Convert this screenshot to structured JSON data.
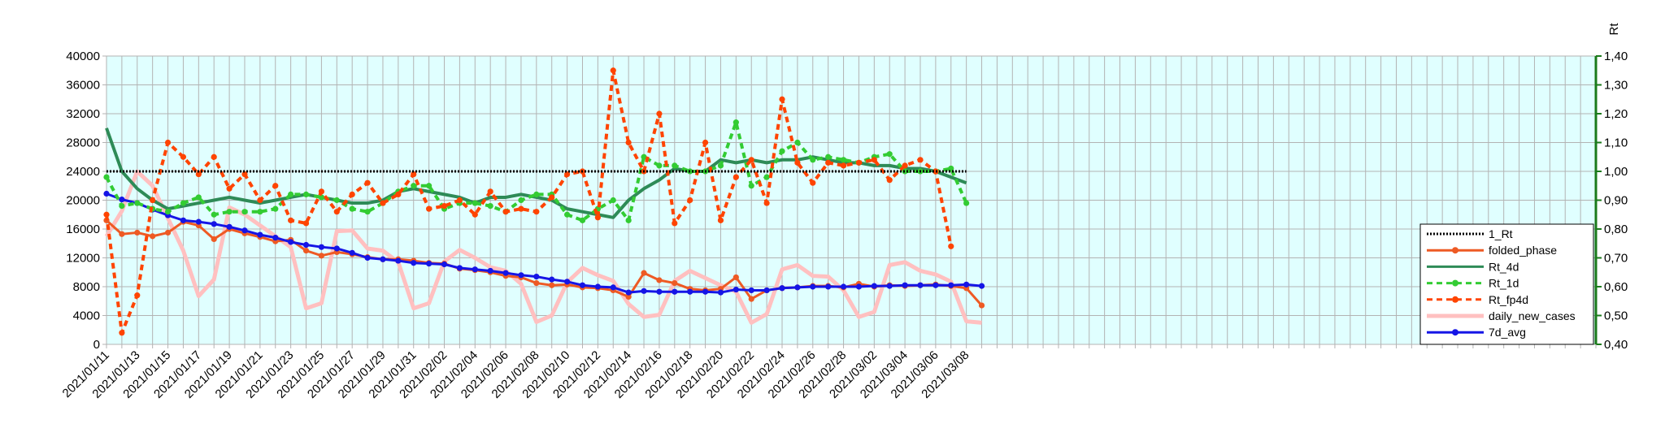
{
  "chart_data": {
    "type": "line",
    "y2label": "Rt",
    "ylim": [
      0,
      40000
    ],
    "yticks": [
      0,
      4000,
      8000,
      12000,
      16000,
      20000,
      24000,
      28000,
      32000,
      36000,
      40000
    ],
    "y2lim": [
      0.4,
      1.4
    ],
    "y2ticks": [
      "0,40",
      "0,50",
      "0,60",
      "0,70",
      "0,80",
      "0,90",
      "1,00",
      "1,10",
      "1,20",
      "1,30",
      "1,40"
    ],
    "grid": true,
    "legend_position": "right",
    "x_start": "2021/01/11",
    "x_end": "2021/04/18",
    "x_tick_labels": [
      "2021/01/11",
      "2021/01/13",
      "2021/01/15",
      "2021/01/17",
      "2021/01/19",
      "2021/01/21",
      "2021/01/23",
      "2021/01/25",
      "2021/01/27",
      "2021/01/29",
      "2021/01/31",
      "2021/02/02",
      "2021/02/04",
      "2021/02/06",
      "2021/02/08",
      "2021/02/10",
      "2021/02/12",
      "2021/02/14",
      "2021/02/16",
      "2021/02/18",
      "2021/02/20",
      "2021/02/22",
      "2021/02/24",
      "2021/02/26",
      "2021/02/28",
      "2021/03/02",
      "2021/03/04",
      "2021/03/06",
      "2021/03/08"
    ],
    "series": [
      {
        "name": "1_Rt",
        "axis": "right",
        "color": "#000000",
        "style": "dotted",
        "marker": "none",
        "values": [
          1.0,
          1.0,
          1.0,
          1.0,
          1.0,
          1.0,
          1.0,
          1.0,
          1.0,
          1.0,
          1.0,
          1.0,
          1.0,
          1.0,
          1.0,
          1.0,
          1.0,
          1.0,
          1.0,
          1.0,
          1.0,
          1.0,
          1.0,
          1.0,
          1.0,
          1.0,
          1.0,
          1.0,
          1.0,
          1.0,
          1.0,
          1.0,
          1.0,
          1.0,
          1.0,
          1.0,
          1.0,
          1.0,
          1.0,
          1.0,
          1.0,
          1.0,
          1.0,
          1.0,
          1.0,
          1.0,
          1.0,
          1.0,
          1.0,
          1.0,
          1.0,
          1.0,
          1.0,
          1.0,
          1.0,
          1.0,
          1.0
        ]
      },
      {
        "name": "folded_phase",
        "axis": "left",
        "color": "#ee5a24",
        "style": "solid",
        "marker": "circle",
        "values": [
          17200,
          15300,
          15500,
          15000,
          15500,
          17000,
          16500,
          14600,
          16000,
          15400,
          14900,
          14300,
          14500,
          13000,
          12300,
          12800,
          12500,
          12100,
          11800,
          11800,
          11600,
          11300,
          11200,
          10500,
          10300,
          10000,
          9500,
          9300,
          8500,
          8200,
          8300,
          7900,
          7800,
          7500,
          6600,
          9900,
          8900,
          8500,
          7700,
          7500,
          7700,
          9300,
          6300,
          7500,
          7800,
          7900,
          8100,
          8100,
          7900,
          8400,
          8000,
          8200,
          8100,
          8200,
          8300,
          8100,
          7800,
          5400
        ]
      },
      {
        "name": "Rt_4d",
        "axis": "right",
        "color": "#2e8b57",
        "style": "solid",
        "marker": "none",
        "values": [
          1.15,
          1.0,
          0.94,
          0.9,
          0.87,
          0.88,
          0.89,
          0.9,
          0.91,
          0.9,
          0.89,
          0.9,
          0.91,
          0.92,
          0.91,
          0.9,
          0.89,
          0.89,
          0.9,
          0.93,
          0.94,
          0.93,
          0.92,
          0.91,
          0.89,
          0.91,
          0.91,
          0.92,
          0.91,
          0.9,
          0.87,
          0.86,
          0.85,
          0.84,
          0.9,
          0.94,
          0.97,
          1.01,
          1.0,
          1.0,
          1.04,
          1.03,
          1.04,
          1.03,
          1.04,
          1.04,
          1.05,
          1.04,
          1.03,
          1.03,
          1.02,
          1.02,
          1.01,
          1.01,
          1.0,
          0.98,
          0.96
        ]
      },
      {
        "name": "Rt_1d",
        "axis": "right",
        "color": "#33cc33",
        "style": "dashed",
        "marker": "circle",
        "values": [
          0.98,
          0.88,
          0.89,
          0.87,
          0.86,
          0.89,
          0.91,
          0.85,
          0.86,
          0.86,
          0.86,
          0.87,
          0.92,
          0.92,
          0.91,
          0.9,
          0.87,
          0.86,
          0.89,
          0.93,
          0.95,
          0.95,
          0.87,
          0.89,
          0.89,
          0.88,
          0.86,
          0.9,
          0.92,
          0.92,
          0.85,
          0.83,
          0.87,
          0.9,
          0.83,
          1.05,
          1.02,
          1.02,
          1.0,
          1.0,
          1.02,
          1.17,
          0.95,
          0.98,
          1.07,
          1.1,
          1.04,
          1.05,
          1.04,
          1.03,
          1.05,
          1.06,
          1.0,
          1.0,
          1.0,
          1.01,
          0.89
        ]
      },
      {
        "name": "Rt_fp4d",
        "axis": "right",
        "color": "#ff4400",
        "style": "dashed",
        "marker": "circle",
        "values": [
          0.85,
          0.44,
          0.57,
          0.9,
          1.1,
          1.05,
          0.99,
          1.05,
          0.94,
          0.99,
          0.9,
          0.95,
          0.83,
          0.82,
          0.93,
          0.86,
          0.92,
          0.96,
          0.89,
          0.92,
          0.99,
          0.87,
          0.88,
          0.9,
          0.85,
          0.93,
          0.86,
          0.87,
          0.86,
          0.91,
          0.99,
          1.0,
          0.84,
          1.35,
          1.1,
          1.0,
          1.2,
          0.82,
          0.9,
          1.1,
          0.83,
          0.98,
          1.04,
          0.89,
          1.25,
          1.03,
          0.96,
          1.03,
          1.02,
          1.03,
          1.04,
          0.97,
          1.02,
          1.04,
          1.0,
          0.74
        ]
      },
      {
        "name": "daily_new_cases",
        "axis": "left",
        "color": "#ffc0c0",
        "style": "solid",
        "marker": "none",
        "values": [
          15000,
          18500,
          24000,
          22000,
          17500,
          13000,
          6700,
          9000,
          19000,
          18000,
          16500,
          15000,
          13500,
          5000,
          5700,
          15700,
          15800,
          13300,
          13000,
          11400,
          5000,
          5700,
          11500,
          13100,
          12000,
          10700,
          10200,
          8400,
          3100,
          4000,
          8600,
          10600,
          9600,
          8800,
          5600,
          3800,
          4100,
          8800,
          10200,
          9200,
          8200,
          7300,
          3000,
          4200,
          10400,
          11000,
          9500,
          9400,
          7500,
          3800,
          4500,
          11000,
          11400,
          10200,
          9700,
          8700,
          3200,
          3000
        ]
      },
      {
        "name": "7d_avg",
        "axis": "left",
        "color": "#1515e6",
        "style": "solid",
        "marker": "circle",
        "values": [
          20900,
          20100,
          19600,
          18700,
          17900,
          17200,
          17000,
          16700,
          16300,
          15800,
          15200,
          14800,
          14200,
          13800,
          13500,
          13300,
          12700,
          12000,
          11800,
          11600,
          11300,
          11200,
          11100,
          10600,
          10400,
          10200,
          9900,
          9600,
          9400,
          9000,
          8700,
          8200,
          8000,
          7900,
          7200,
          7400,
          7300,
          7300,
          7300,
          7300,
          7200,
          7600,
          7500,
          7500,
          7800,
          7900,
          8000,
          8000,
          8000,
          8000,
          8100,
          8100,
          8200,
          8200,
          8200,
          8200,
          8300,
          8100
        ]
      }
    ]
  }
}
